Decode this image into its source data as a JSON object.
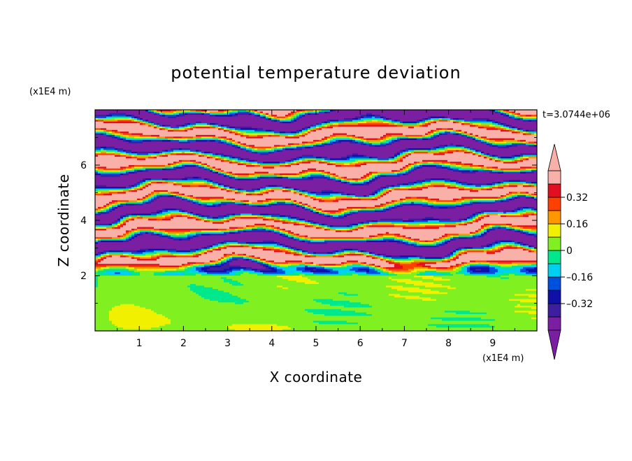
{
  "chart_data": {
    "type": "heatmap",
    "title": "potential temperature deviation",
    "xlabel": "X coordinate",
    "ylabel": "Z coordinate",
    "x_unit": "(x1E4 m)",
    "y_unit": "(x1E4 m)",
    "time_label": "t=3.0744e+06",
    "xlim": [
      0,
      10
    ],
    "ylim": [
      0,
      8
    ],
    "x_ticks": [
      "1",
      "2",
      "3",
      "4",
      "5",
      "6",
      "7",
      "8",
      "9"
    ],
    "y_ticks": [
      "2",
      "4",
      "6"
    ],
    "colorbar": {
      "levels": [
        -0.48,
        -0.4,
        -0.32,
        -0.24,
        -0.16,
        -0.08,
        0,
        0.08,
        0.16,
        0.24,
        0.32,
        0.4,
        0.48
      ],
      "colors": [
        "#7b1fa2",
        "#3c1e9e",
        "#1010a8",
        "#0050e0",
        "#00d0f0",
        "#00e88c",
        "#80f020",
        "#f0f000",
        "#ff9800",
        "#ff4000",
        "#e01020",
        "#f8b0a8"
      ],
      "tick_labels": [
        {
          "value": 0.32,
          "label": "0.32"
        },
        {
          "value": 0.16,
          "label": "0.16"
        },
        {
          "value": 0,
          "label": "0"
        },
        {
          "value": -0.16,
          "label": "–0.16"
        },
        {
          "value": -0.32,
          "label": "–0.32"
        }
      ],
      "extend": "both"
    }
  }
}
